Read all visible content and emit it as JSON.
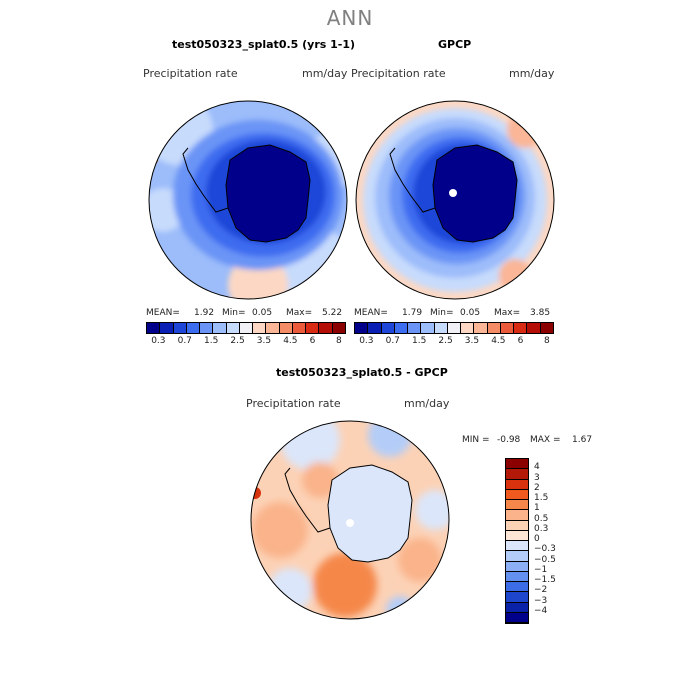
{
  "title": "ANN",
  "panels": [
    {
      "title": "test050323_splat0.5 (yrs 1-1)",
      "variable": "Precipitation rate",
      "units": "mm/day",
      "mean_label": "MEAN=",
      "mean": "1.92",
      "min_label": "Min=",
      "min": "0.05",
      "max_label": "Max=",
      "max": "5.22"
    },
    {
      "title": "GPCP",
      "variable": "Precipitation rate",
      "units": "mm/day",
      "mean_label": "MEAN=",
      "mean": "1.79",
      "min_label": "Min=",
      "min": "0.05",
      "max_label": "Max=",
      "max": "3.85"
    },
    {
      "title": "test050323_splat0.5 - GPCP",
      "variable": "Precipitation rate",
      "units": "mm/day",
      "min_label": "MIN =",
      "min": "-0.98",
      "max_label": "MAX =",
      "max": "1.67"
    }
  ],
  "colorbar_top": {
    "colors": [
      "#00008b",
      "#0a1fb4",
      "#1e46d8",
      "#3c6cf0",
      "#6a94f6",
      "#9cbcfa",
      "#c7dbfc",
      "#f0f0f5",
      "#fcd8c4",
      "#fab696",
      "#f48c66",
      "#eb5a3a",
      "#d92a14",
      "#b40e06",
      "#8b0000"
    ],
    "ticks": [
      "0.3",
      "0.7",
      "1.5",
      "2.5",
      "3.5",
      "4.5",
      "6",
      "8"
    ]
  },
  "colorbar_diff": {
    "colors": [
      "#8b0000",
      "#b41808",
      "#d9320e",
      "#f05a1e",
      "#f5874a",
      "#fab38a",
      "#fcd2b6",
      "#fde6d6",
      "#dbe6fa",
      "#b4cdf8",
      "#8caff6",
      "#6490f0",
      "#3c6de6",
      "#1e46cc",
      "#0a22a8",
      "#00008b"
    ],
    "ticks": [
      "4",
      "3",
      "2",
      "1.5",
      "1",
      "0.5",
      "0.3",
      "0",
      "-0.3",
      "-0.5",
      "-1",
      "-1.5",
      "-2",
      "-3",
      "-4"
    ]
  }
}
